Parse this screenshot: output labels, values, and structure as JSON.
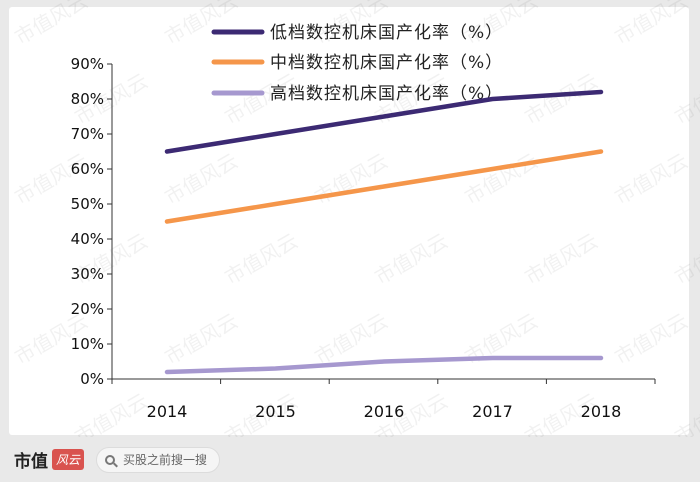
{
  "chart_data": {
    "type": "line",
    "x": [
      "2014",
      "2015",
      "2016",
      "2017",
      "2018"
    ],
    "series": [
      {
        "name": "低档数控机床国产化率（%）",
        "color": "#3c2a73",
        "values": [
          65,
          70,
          75,
          80,
          82
        ]
      },
      {
        "name": "中档数控机床国产化率（%）",
        "color": "#f5964a",
        "values": [
          45,
          50,
          55,
          60,
          65
        ]
      },
      {
        "name": "高档数控机床国产化率（%）",
        "color": "#a698cf",
        "values": [
          2,
          3,
          5,
          6,
          6
        ]
      }
    ],
    "y_ticks": [
      "0%",
      "10%",
      "20%",
      "30%",
      "40%",
      "50%",
      "60%",
      "70%",
      "80%",
      "90%"
    ],
    "ylim": [
      0,
      90
    ],
    "grid": false,
    "legend_position": "top"
  },
  "watermark": {
    "text": "市值风云"
  },
  "footer": {
    "brand": "市值",
    "brand_badge": "风云",
    "search_placeholder": "买股之前搜一搜"
  }
}
